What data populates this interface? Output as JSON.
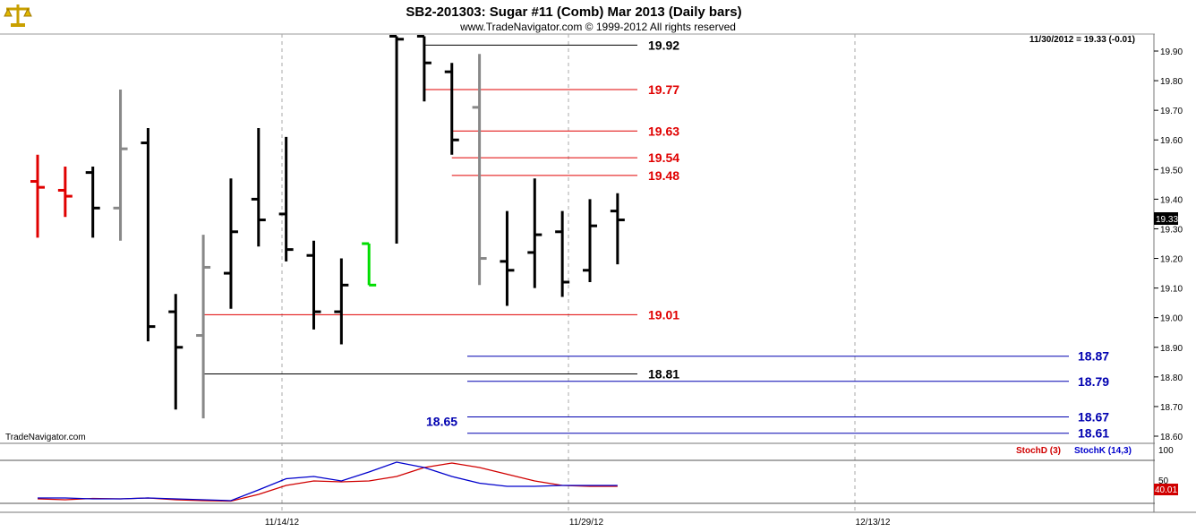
{
  "header": {
    "title": "SB2-201303:  Sugar #11 (Comb) Mar 2013  (Daily bars)",
    "copyright": "www.TradeNavigator.com © 1999-2012 All rights reserved",
    "last_quote": "11/30/2012 = 19.33 (-0.01)",
    "watermark": "TradeNavigator.com",
    "logo_icon": "scales-logo-icon"
  },
  "colors": {
    "up_bar": "#000000",
    "gray_bar": "#888888",
    "red_bar": "#e00000",
    "green_bar": "#00dd00",
    "red_level": "#e00000",
    "black_level": "#000000",
    "blue_level": "#0000b0",
    "stoch_d": "#d00000",
    "stoch_k": "#0000cc"
  },
  "chart_data": {
    "type": "ohlc",
    "x_tick_labels": [
      "11/14/12",
      "11/29/12",
      "12/13/12"
    ],
    "y_tick_labels": [
      "19.90",
      "19.80",
      "19.70",
      "19.60",
      "19.50",
      "19.40",
      "19.30",
      "19.20",
      "19.10",
      "19.00",
      "18.90",
      "18.80",
      "18.70",
      "18.60"
    ],
    "ylim": [
      18.57,
      19.95
    ],
    "last_price_label": "19.33",
    "bars": [
      {
        "o": 19.46,
        "h": 19.55,
        "l": 19.27,
        "c": 19.44,
        "color": "red"
      },
      {
        "o": 19.43,
        "h": 19.51,
        "l": 19.34,
        "c": 19.41,
        "color": "red"
      },
      {
        "o": 19.49,
        "h": 19.51,
        "l": 19.27,
        "c": 19.37,
        "color": "black"
      },
      {
        "o": 19.37,
        "h": 19.77,
        "l": 19.26,
        "c": 19.57,
        "color": "gray"
      },
      {
        "o": 19.59,
        "h": 19.64,
        "l": 18.92,
        "c": 18.97,
        "color": "black"
      },
      {
        "o": 19.02,
        "h": 19.08,
        "l": 18.69,
        "c": 18.9,
        "color": "black"
      },
      {
        "o": 18.94,
        "h": 19.28,
        "l": 18.66,
        "c": 19.17,
        "color": "gray"
      },
      {
        "o": 19.15,
        "h": 19.47,
        "l": 19.03,
        "c": 19.29,
        "color": "black"
      },
      {
        "o": 19.4,
        "h": 19.64,
        "l": 19.24,
        "c": 19.33,
        "color": "black"
      },
      {
        "o": 19.35,
        "h": 19.61,
        "l": 19.19,
        "c": 19.23,
        "color": "black"
      },
      {
        "o": 19.21,
        "h": 19.26,
        "l": 18.96,
        "c": 19.02,
        "color": "black"
      },
      {
        "o": 19.02,
        "h": 19.2,
        "l": 18.91,
        "c": 19.11,
        "color": "black"
      },
      {
        "o": 19.25,
        "h": 19.25,
        "l": 19.11,
        "c": 19.11,
        "color": "green"
      },
      {
        "o": 19.95,
        "h": 19.95,
        "l": 19.25,
        "c": 19.94,
        "color": "black"
      },
      {
        "o": 19.95,
        "h": 19.95,
        "l": 19.73,
        "c": 19.86,
        "color": "black"
      },
      {
        "o": 19.83,
        "h": 19.86,
        "l": 19.55,
        "c": 19.6,
        "color": "black"
      },
      {
        "o": 19.71,
        "h": 19.89,
        "l": 19.11,
        "c": 19.2,
        "color": "gray"
      },
      {
        "o": 19.19,
        "h": 19.36,
        "l": 19.04,
        "c": 19.16,
        "color": "black"
      },
      {
        "o": 19.22,
        "h": 19.47,
        "l": 19.1,
        "c": 19.28,
        "color": "black"
      },
      {
        "o": 19.29,
        "h": 19.36,
        "l": 19.07,
        "c": 19.12,
        "color": "black"
      },
      {
        "o": 19.16,
        "h": 19.4,
        "l": 19.12,
        "c": 19.31,
        "color": "black"
      },
      {
        "o": 19.36,
        "h": 19.42,
        "l": 19.18,
        "c": 19.33,
        "color": "black"
      }
    ],
    "levels": [
      {
        "value": "19.92",
        "color": "black",
        "start_bar": 14
      },
      {
        "value": "19.77",
        "color": "red",
        "start_bar": 14
      },
      {
        "value": "19.63",
        "color": "red",
        "start_bar": 15
      },
      {
        "value": "19.54",
        "color": "red",
        "start_bar": 15
      },
      {
        "value": "19.48",
        "color": "red",
        "start_bar": 15
      },
      {
        "value": "19.01",
        "color": "red",
        "start_bar": 6
      },
      {
        "value": "18.81",
        "color": "black",
        "start_bar": 6
      }
    ],
    "blue_levels": [
      {
        "value": "18.87",
        "y": 18.87
      },
      {
        "value": "18.79",
        "y": 18.785
      },
      {
        "value": "18.67",
        "y": 18.665
      },
      {
        "value": "18.61",
        "y": 18.61
      }
    ],
    "extra_label": {
      "value": "18.65",
      "y": 18.65
    },
    "stochastic": {
      "legend_d": "StochD (3)",
      "legend_k": "StochK (14,3)",
      "top_label": "100",
      "mid_label": "50",
      "current_label": "40.01",
      "d_values": [
        10,
        8,
        11,
        10,
        12,
        8,
        6,
        5,
        20,
        40,
        50,
        48,
        50,
        60,
        80,
        90,
        80,
        65,
        50,
        40,
        38,
        38
      ],
      "k_values": [
        12,
        12,
        10,
        10,
        12,
        10,
        8,
        6,
        30,
        55,
        60,
        50,
        70,
        92,
        80,
        60,
        45,
        38,
        38,
        40,
        40,
        40
      ]
    }
  }
}
